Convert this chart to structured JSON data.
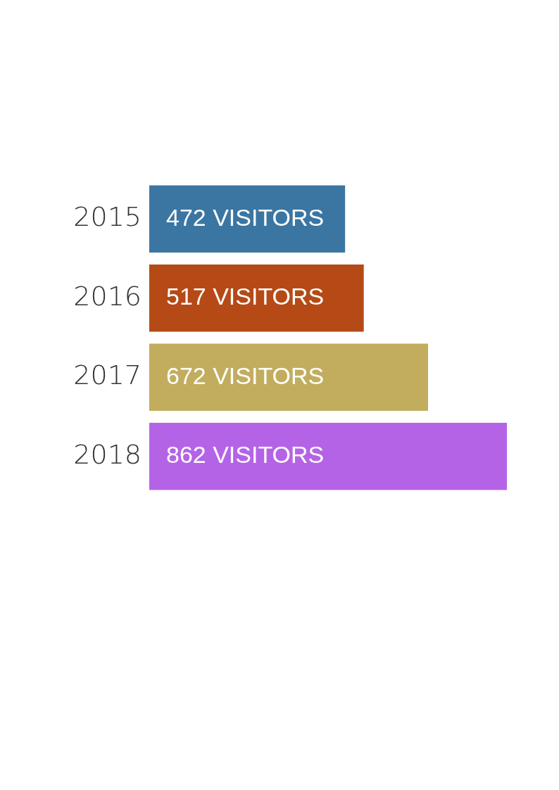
{
  "chart_data": {
    "type": "bar",
    "orientation": "horizontal",
    "categories": [
      "2015",
      "2016",
      "2017",
      "2018"
    ],
    "values": [
      472,
      517,
      672,
      862
    ],
    "colors": [
      "#3b76a2",
      "#b54a17",
      "#c2ad5e",
      "#b563e6"
    ],
    "value_labels": [
      "472 VISITORS",
      "517 VISITORS",
      "672 VISITORS",
      "862 VISITORS"
    ]
  }
}
